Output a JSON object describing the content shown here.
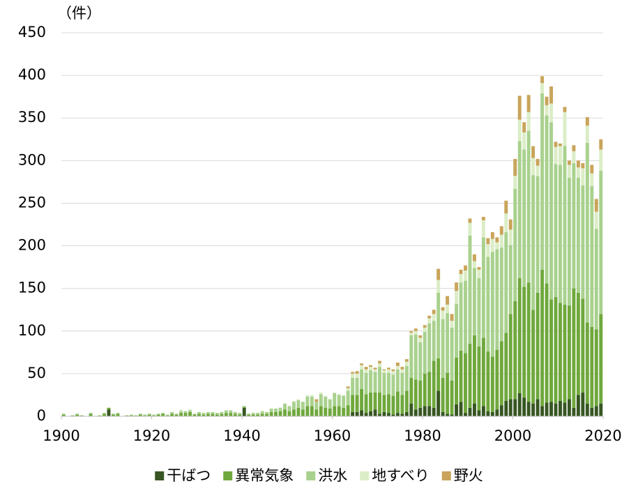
{
  "chart_data": {
    "type": "bar",
    "stacked": true,
    "y_label": "（件）",
    "x": [
      1900,
      1901,
      1902,
      1903,
      1904,
      1905,
      1906,
      1907,
      1908,
      1909,
      1910,
      1911,
      1912,
      1913,
      1914,
      1915,
      1916,
      1917,
      1918,
      1919,
      1920,
      1921,
      1922,
      1923,
      1924,
      1925,
      1926,
      1927,
      1928,
      1929,
      1930,
      1931,
      1932,
      1933,
      1934,
      1935,
      1936,
      1937,
      1938,
      1939,
      1940,
      1941,
      1942,
      1943,
      1944,
      1945,
      1946,
      1947,
      1948,
      1949,
      1950,
      1951,
      1952,
      1953,
      1954,
      1955,
      1956,
      1957,
      1958,
      1959,
      1960,
      1961,
      1962,
      1963,
      1964,
      1965,
      1966,
      1967,
      1968,
      1969,
      1970,
      1971,
      1972,
      1973,
      1974,
      1975,
      1976,
      1977,
      1978,
      1979,
      1980,
      1981,
      1982,
      1983,
      1984,
      1985,
      1986,
      1987,
      1988,
      1989,
      1990,
      1991,
      1992,
      1993,
      1994,
      1995,
      1996,
      1997,
      1998,
      1999,
      2000,
      2001,
      2002,
      2003,
      2004,
      2005,
      2006,
      2007,
      2008,
      2009,
      2010,
      2011,
      2012,
      2013,
      2014,
      2015,
      2016,
      2017,
      2018,
      2019
    ],
    "series": [
      {
        "name": "干ばつ",
        "color": "#375623",
        "values": [
          0,
          0,
          0,
          0,
          0,
          0,
          0,
          0,
          0,
          0,
          8,
          0,
          0,
          0,
          0,
          0,
          0,
          0,
          0,
          0,
          0,
          0,
          0,
          0,
          0,
          0,
          0,
          0,
          0,
          0,
          0,
          0,
          0,
          0,
          0,
          0,
          0,
          0,
          0,
          0,
          10,
          0,
          0,
          0,
          0,
          0,
          0,
          0,
          0,
          0,
          0,
          0,
          0,
          0,
          0,
          0,
          0,
          0,
          0,
          0,
          0,
          0,
          0,
          0,
          5,
          5,
          7,
          4,
          6,
          8,
          3,
          5,
          4,
          2,
          4,
          3,
          5,
          15,
          8,
          10,
          12,
          12,
          10,
          30,
          5,
          3,
          2,
          14,
          17,
          4,
          10,
          15,
          7,
          12,
          6,
          5,
          8,
          13,
          18,
          20,
          20,
          27,
          22,
          17,
          15,
          20,
          12,
          16,
          17,
          15,
          18,
          16,
          20,
          10,
          25,
          28,
          15,
          10,
          12,
          15
        ]
      },
      {
        "name": "異常気象",
        "color": "#6fa83c",
        "values": [
          2,
          0,
          1,
          2,
          1,
          0,
          3,
          0,
          1,
          3,
          2,
          2,
          3,
          0,
          1,
          1,
          1,
          2,
          1,
          2,
          1,
          2,
          3,
          1,
          3,
          2,
          4,
          4,
          5,
          2,
          3,
          2,
          3,
          3,
          2,
          3,
          4,
          4,
          3,
          2,
          1,
          2,
          2,
          2,
          3,
          3,
          5,
          5,
          6,
          8,
          6,
          8,
          10,
          8,
          12,
          12,
          8,
          12,
          10,
          9,
          12,
          12,
          10,
          13,
          20,
          20,
          25,
          22,
          22,
          20,
          25,
          20,
          22,
          22,
          25,
          22,
          25,
          30,
          35,
          32,
          38,
          40,
          55,
          38,
          40,
          48,
          40,
          55,
          60,
          70,
          75,
          80,
          75,
          80,
          70,
          65,
          70,
          75,
          80,
          100,
          115,
          135,
          130,
          140,
          110,
          125,
          160,
          140,
          120,
          125,
          115,
          115,
          110,
          140,
          120,
          110,
          95,
          95,
          90,
          105
        ]
      },
      {
        "name": "洪水",
        "color": "#a9d18e",
        "values": [
          1,
          0,
          0,
          1,
          0,
          0,
          1,
          0,
          0,
          1,
          0,
          1,
          1,
          0,
          0,
          1,
          0,
          1,
          1,
          1,
          1,
          1,
          1,
          1,
          2,
          1,
          2,
          2,
          2,
          1,
          2,
          2,
          2,
          2,
          2,
          2,
          3,
          3,
          2,
          2,
          1,
          1,
          2,
          2,
          3,
          2,
          4,
          4,
          4,
          7,
          6,
          9,
          9,
          9,
          11,
          11,
          9,
          14,
          13,
          11,
          15,
          13,
          14,
          17,
          20,
          20,
          23,
          25,
          26,
          24,
          30,
          26,
          25,
          25,
          26,
          26,
          29,
          50,
          53,
          45,
          49,
          57,
          47,
          77,
          69,
          70,
          62,
          63,
          80,
          85,
          127,
          79,
          80,
          118,
          111,
          123,
          118,
          110,
          118,
          81,
          132,
          161,
          161,
          178,
          158,
          137,
          207,
          197,
          208,
          156,
          162,
          186,
          150,
          147,
          135,
          133,
          211,
          165,
          118,
          168
        ]
      },
      {
        "name": "地すべり",
        "color": "#dbedc6",
        "values": [
          0,
          0,
          0,
          0,
          0,
          0,
          0,
          0,
          0,
          0,
          0,
          0,
          0,
          0,
          0,
          0,
          0,
          0,
          0,
          0,
          0,
          0,
          0,
          0,
          0,
          0,
          2,
          0,
          1,
          0,
          0,
          0,
          0,
          0,
          0,
          0,
          0,
          0,
          0,
          0,
          0,
          0,
          0,
          0,
          0,
          0,
          0,
          0,
          0,
          0,
          0,
          1,
          1,
          0,
          2,
          2,
          0,
          2,
          1,
          0,
          1,
          1,
          1,
          3,
          5,
          5,
          5,
          4,
          4,
          3,
          4,
          3,
          4,
          4,
          4,
          4,
          5,
          3,
          4,
          5,
          5,
          6,
          8,
          15,
          10,
          10,
          8,
          15,
          10,
          12,
          15,
          8,
          10,
          20,
          15,
          15,
          8,
          15,
          22,
          18,
          15,
          25,
          20,
          22,
          20,
          12,
          12,
          12,
          22,
          20,
          22,
          40,
          15,
          14,
          12,
          20,
          20,
          15,
          20,
          25
        ]
      },
      {
        "name": "野火",
        "color": "#c9a45a",
        "values": [
          0,
          0,
          0,
          0,
          0,
          0,
          0,
          0,
          0,
          0,
          0,
          0,
          0,
          0,
          0,
          0,
          0,
          0,
          0,
          0,
          0,
          0,
          0,
          0,
          0,
          0,
          0,
          0,
          0,
          0,
          0,
          0,
          0,
          0,
          0,
          0,
          0,
          0,
          0,
          0,
          0,
          0,
          0,
          0,
          0,
          0,
          0,
          0,
          0,
          0,
          0,
          0,
          0,
          0,
          0,
          0,
          3,
          0,
          0,
          0,
          0,
          0,
          0,
          2,
          2,
          3,
          2,
          3,
          2,
          2,
          3,
          1,
          2,
          2,
          4,
          3,
          3,
          2,
          3,
          3,
          3,
          3,
          5,
          13,
          4,
          10,
          8,
          10,
          5,
          6,
          5,
          8,
          3,
          4,
          7,
          8,
          6,
          10,
          15,
          12,
          20,
          28,
          12,
          20,
          14,
          8,
          8,
          10,
          20,
          6,
          3,
          6,
          5,
          7,
          8,
          6,
          10,
          10,
          15,
          12
        ]
      }
    ],
    "xlim": [
      1900,
      2020
    ],
    "xticks": [
      1900,
      1920,
      1940,
      1960,
      1980,
      2000,
      2020
    ],
    "ylim": [
      0,
      450
    ],
    "yticks": [
      0,
      50,
      100,
      150,
      200,
      250,
      300,
      350,
      400,
      450
    ],
    "grid": true,
    "legend": "bottom"
  }
}
